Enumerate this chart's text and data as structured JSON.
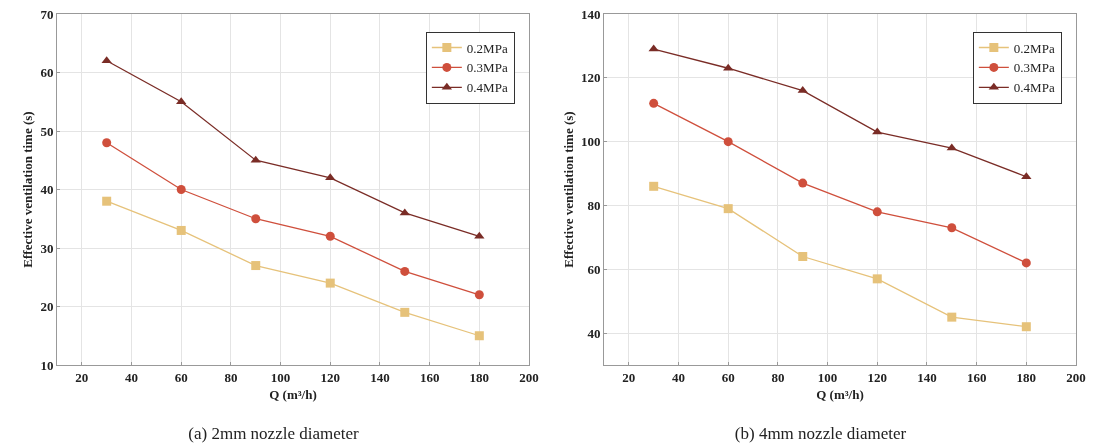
{
  "chart_data": [
    {
      "type": "line",
      "title": "(a) 2mm nozzle diameter",
      "xlabel": "Q (m³/h)",
      "ylabel": "Effective ventilation time (s)",
      "x": [
        30,
        60,
        90,
        120,
        150,
        180
      ],
      "xlim": [
        10,
        200
      ],
      "xticks": [
        20,
        40,
        60,
        80,
        100,
        120,
        140,
        160,
        180,
        200
      ],
      "ylim": [
        10,
        70
      ],
      "yticks": [
        10,
        20,
        30,
        40,
        50,
        60,
        70
      ],
      "grid": true,
      "legend": "top right",
      "line_style": "solid",
      "series": [
        {
          "name": "0.2MPa",
          "color": "#e6c27a",
          "marker": "square",
          "values": [
            38,
            33,
            27,
            24,
            19,
            15
          ]
        },
        {
          "name": "0.3MPa",
          "color": "#cf4f3c",
          "marker": "circle",
          "values": [
            48,
            40,
            35,
            32,
            26,
            22
          ]
        },
        {
          "name": "0.4MPa",
          "color": "#7a2c26",
          "marker": "triangle",
          "values": [
            62,
            55,
            45,
            42,
            36,
            32
          ]
        }
      ]
    },
    {
      "type": "line",
      "title": "(b) 4mm nozzle diameter",
      "xlabel": "Q (m³/h)",
      "ylabel": "Effective ventilation time (s)",
      "x": [
        30,
        60,
        90,
        120,
        150,
        180
      ],
      "xlim": [
        10,
        200
      ],
      "xticks": [
        20,
        40,
        60,
        80,
        100,
        120,
        140,
        160,
        180,
        200
      ],
      "ylim": [
        30,
        140
      ],
      "yticks": [
        40,
        60,
        80,
        100,
        120,
        140
      ],
      "grid": true,
      "legend": "top right",
      "line_style": "solid",
      "series": [
        {
          "name": "0.2MPa",
          "color": "#e6c27a",
          "marker": "square",
          "values": [
            86,
            79,
            64,
            57,
            45,
            42
          ]
        },
        {
          "name": "0.3MPa",
          "color": "#cf4f3c",
          "marker": "circle",
          "values": [
            112,
            100,
            87,
            78,
            73,
            62
          ]
        },
        {
          "name": "0.4MPa",
          "color": "#7a2c26",
          "marker": "triangle",
          "values": [
            129,
            123,
            116,
            103,
            98,
            89
          ]
        }
      ]
    }
  ]
}
